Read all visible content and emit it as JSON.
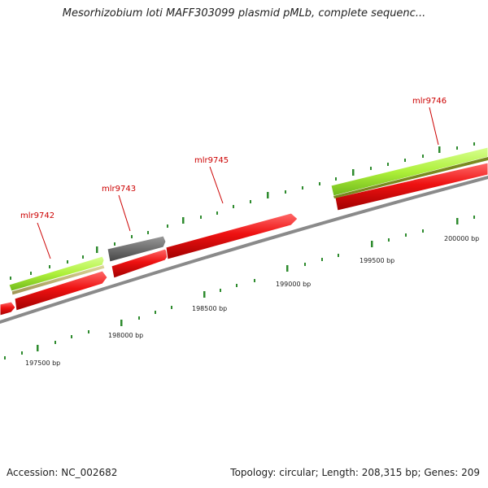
{
  "title": "Mesorhizobium loti MAFF303099 plasmid pMLb, complete sequenc...",
  "footer": {
    "accession": "Accession: NC_002682",
    "stats": "Topology: circular; Length: 208,315 bp; Genes: 209"
  },
  "gene_labels": [
    "mlr9742",
    "mlr9743",
    "mlr9745",
    "mlr9746"
  ],
  "position_labels": [
    "197500 bp",
    "198000 bp",
    "198500 bp",
    "199000 bp",
    "199500 bp",
    "200000 bp"
  ],
  "colors": {
    "cds_red": "#ee1111",
    "cds_green": "#aef03a",
    "cds_khaki": "#c8bf78",
    "cds_gray": "#666666",
    "backbone": "#888888",
    "tick": "#2e8b2e",
    "label": "#cc0000"
  }
}
